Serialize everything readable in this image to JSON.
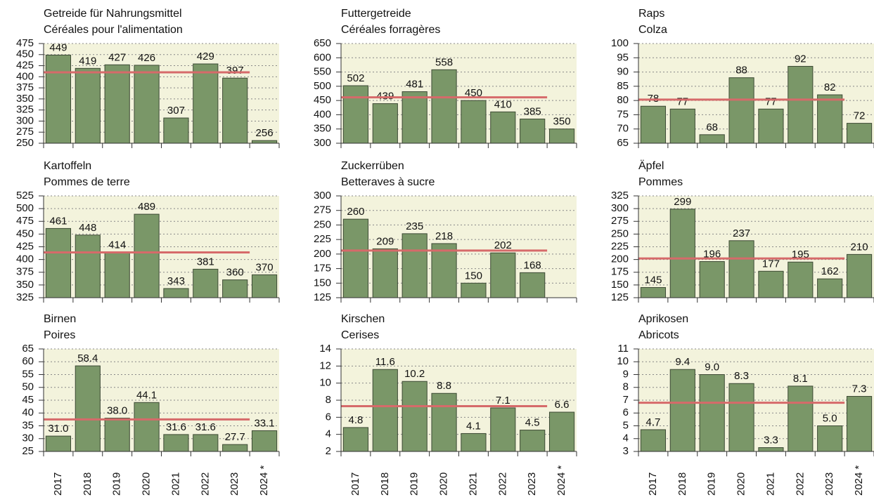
{
  "chart_data": [
    {
      "type": "bar",
      "title": "Getreide für Nahrungsmittel",
      "subtitle": "Céréales pour l'alimentation",
      "categories": [
        "2017",
        "2018",
        "2019",
        "2020",
        "2021",
        "2022",
        "2023",
        "2024 *"
      ],
      "values": [
        449,
        419,
        427,
        426,
        307,
        429,
        397,
        256
      ],
      "color": "#7a9768",
      "ylim": [
        250,
        475
      ],
      "yticks": [
        250,
        275,
        300,
        325,
        350,
        375,
        400,
        425,
        450,
        475
      ],
      "grid": true,
      "reference_line": {
        "value": 410,
        "color": "#d66a6a"
      }
    },
    {
      "type": "bar",
      "title": "Futtergetreide",
      "subtitle": "Céréales forragères",
      "categories": [
        "2017",
        "2018",
        "2019",
        "2020",
        "2021",
        "2022",
        "2023",
        "2024 *"
      ],
      "values": [
        502,
        439,
        481,
        558,
        450,
        410,
        385,
        350
      ],
      "color": "#7a9768",
      "ylim": [
        300,
        650
      ],
      "yticks": [
        300,
        350,
        400,
        450,
        500,
        550,
        600,
        650
      ],
      "grid": true,
      "reference_line": {
        "value": 461,
        "color": "#d66a6a"
      }
    },
    {
      "type": "bar",
      "title": "Raps",
      "subtitle": "Colza",
      "categories": [
        "2017",
        "2018",
        "2019",
        "2020",
        "2021",
        "2022",
        "2023",
        "2024 *"
      ],
      "values": [
        78,
        77,
        68,
        88,
        77,
        92,
        82,
        72
      ],
      "color": "#7a9768",
      "ylim": [
        65,
        100
      ],
      "yticks": [
        65,
        70,
        75,
        80,
        85,
        90,
        95,
        100
      ],
      "grid": true,
      "reference_line": {
        "value": 80.3,
        "color": "#d66a6a"
      }
    },
    {
      "type": "bar",
      "title": "Kartoffeln",
      "subtitle": "Pommes de terre",
      "categories": [
        "2017",
        "2018",
        "2019",
        "2020",
        "2021",
        "2022",
        "2023",
        "2024 *"
      ],
      "values": [
        461,
        448,
        414,
        489,
        343,
        381,
        360,
        370
      ],
      "color": "#7a9768",
      "ylim": [
        325,
        525
      ],
      "yticks": [
        325,
        350,
        375,
        400,
        425,
        450,
        475,
        500,
        525
      ],
      "grid": true,
      "reference_line": {
        "value": 414,
        "color": "#d66a6a"
      }
    },
    {
      "type": "bar",
      "title": "Zuckerrüben",
      "subtitle": "Betteraves à sucre",
      "categories": [
        "2017",
        "2018",
        "2019",
        "2020",
        "2021",
        "2022",
        "2023",
        "2024 *"
      ],
      "values": [
        260,
        209,
        235,
        218,
        150,
        202,
        168,
        null
      ],
      "color": "#7a9768",
      "ylim": [
        125,
        300
      ],
      "yticks": [
        125,
        150,
        175,
        200,
        225,
        250,
        275,
        300
      ],
      "grid": true,
      "reference_line": {
        "value": 206,
        "color": "#d66a6a"
      }
    },
    {
      "type": "bar",
      "title": "Äpfel",
      "subtitle": "Pommes",
      "categories": [
        "2017",
        "2018",
        "2019",
        "2020",
        "2021",
        "2022",
        "2023",
        "2024 *"
      ],
      "values": [
        145,
        299,
        196,
        237,
        177,
        195,
        162,
        210
      ],
      "color": "#7a9768",
      "ylim": [
        125,
        325
      ],
      "yticks": [
        125,
        150,
        175,
        200,
        225,
        250,
        275,
        300,
        325
      ],
      "grid": true,
      "reference_line": {
        "value": 202,
        "color": "#d66a6a"
      }
    },
    {
      "type": "bar",
      "title": "Birnen",
      "subtitle": "Poires",
      "categories": [
        "2017",
        "2018",
        "2019",
        "2020",
        "2021",
        "2022",
        "2023",
        "2024 *"
      ],
      "values": [
        31,
        58.4,
        38,
        44.1,
        31.6,
        31.6,
        27.7,
        33.1
      ],
      "value_labels": [
        "31.0",
        "58.4",
        "38.0",
        "44.1",
        "31.6",
        "31.6",
        "27.7",
        "33.1"
      ],
      "color": "#7a9768",
      "ylim": [
        25,
        65
      ],
      "yticks": [
        25,
        30,
        35,
        40,
        45,
        50,
        55,
        60,
        65
      ],
      "grid": true,
      "reference_line": {
        "value": 37.5,
        "color": "#d66a6a"
      }
    },
    {
      "type": "bar",
      "title": "Kirschen",
      "subtitle": "Cerises",
      "categories": [
        "2017",
        "2018",
        "2019",
        "2020",
        "2021",
        "2022",
        "2023",
        "2024 *"
      ],
      "values": [
        4.8,
        11.6,
        10.2,
        8.8,
        4.1,
        7.1,
        4.5,
        6.6
      ],
      "value_labels": [
        "4.8",
        "11.6",
        "10.2",
        "8.8",
        "4.1",
        "7.1",
        "4.5",
        "6.6"
      ],
      "color": "#7a9768",
      "ylim": [
        2,
        14
      ],
      "yticks": [
        2,
        4,
        6,
        8,
        10,
        12,
        14
      ],
      "grid": true,
      "reference_line": {
        "value": 7.3,
        "color": "#d66a6a"
      }
    },
    {
      "type": "bar",
      "title": "Aprikosen",
      "subtitle": "Abricots",
      "categories": [
        "2017",
        "2018",
        "2019",
        "2020",
        "2021",
        "2022",
        "2023",
        "2024 *"
      ],
      "values": [
        4.7,
        9.4,
        9,
        8.3,
        3.3,
        8.1,
        5,
        7.3
      ],
      "value_labels": [
        "4.7",
        "9.4",
        "9.0",
        "8.3",
        "3.3",
        "8.1",
        "5.0",
        "7.3"
      ],
      "color": "#7a9768",
      "ylim": [
        3,
        11
      ],
      "yticks": [
        3,
        4,
        5,
        6,
        7,
        8,
        9,
        10,
        11
      ],
      "grid": true,
      "reference_line": {
        "value": 6.8,
        "color": "#d66a6a"
      }
    }
  ]
}
